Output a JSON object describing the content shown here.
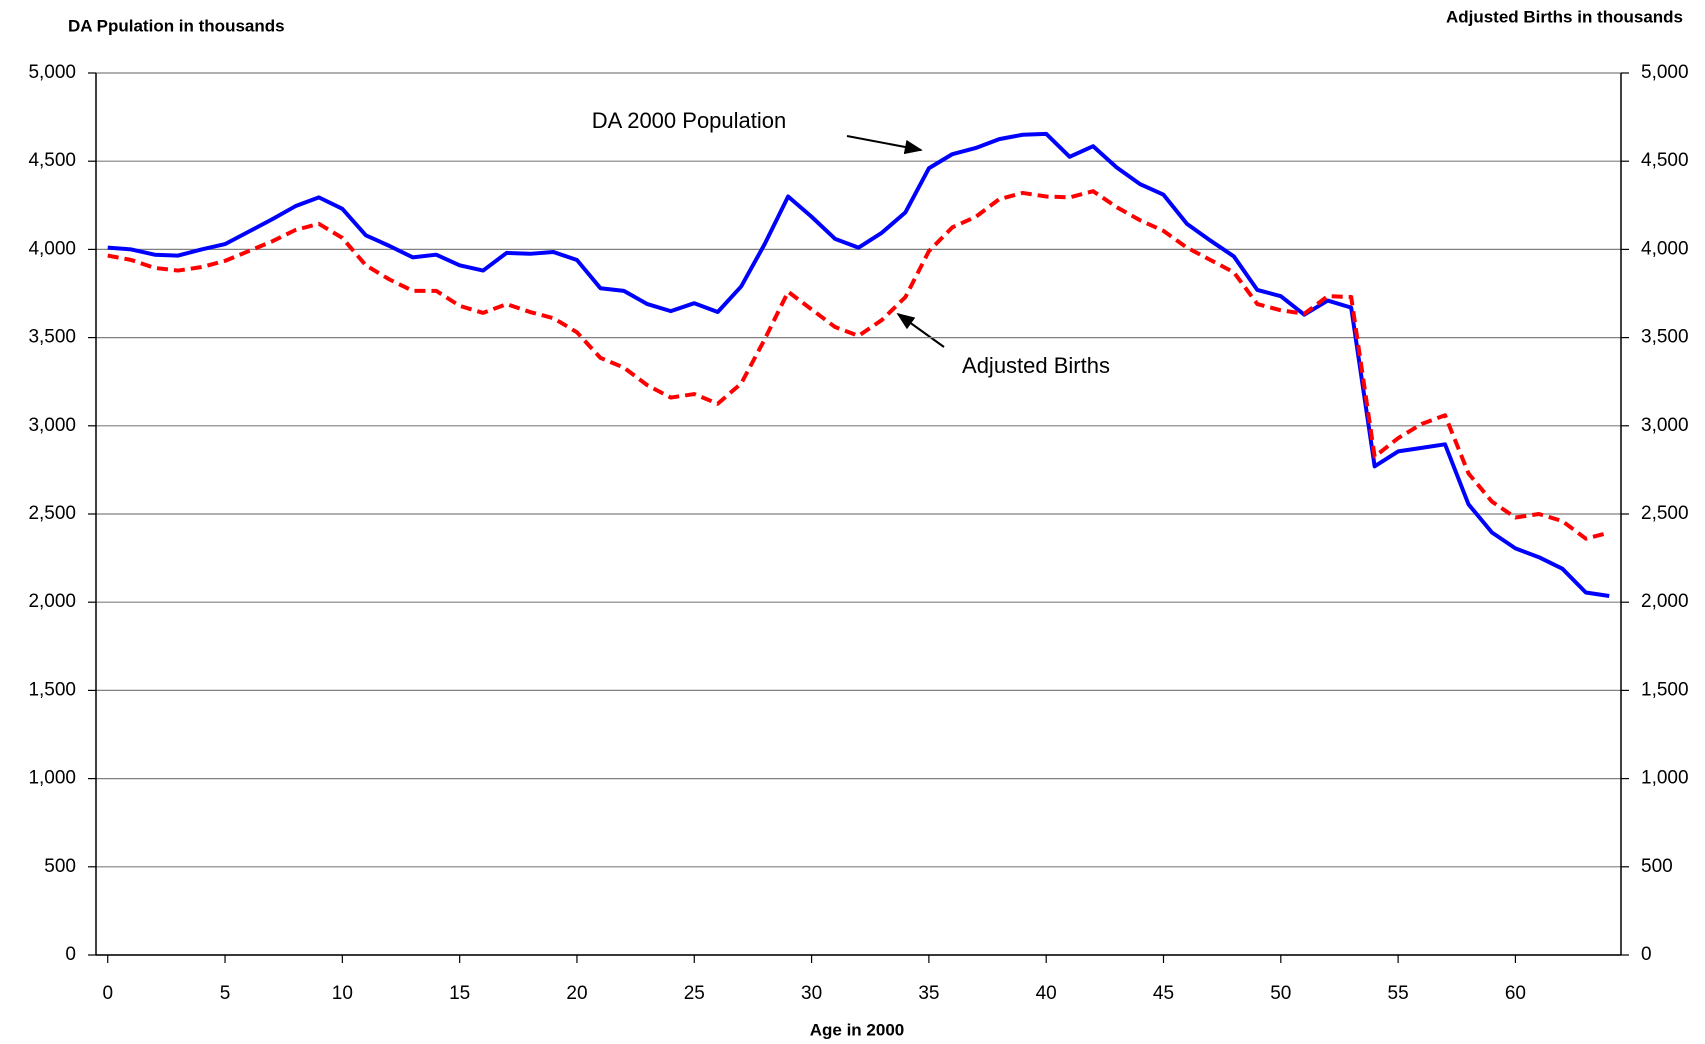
{
  "chart_data": {
    "type": "line",
    "y_label": "DA Ppulation in thousands",
    "y2_label": "Adjusted Births in thousands",
    "x_label": "Age in 2000",
    "annotations": [
      "DA 2000 Population",
      "Adjusted Births"
    ],
    "x": [
      0,
      1,
      2,
      3,
      4,
      5,
      6,
      7,
      8,
      9,
      10,
      11,
      12,
      13,
      14,
      15,
      16,
      17,
      18,
      19,
      20,
      21,
      22,
      23,
      24,
      25,
      26,
      27,
      28,
      29,
      30,
      31,
      32,
      33,
      34,
      35,
      36,
      37,
      38,
      39,
      40,
      41,
      42,
      43,
      44,
      45,
      46,
      47,
      48,
      49,
      50,
      51,
      52,
      53,
      54,
      55,
      56,
      57,
      58,
      59,
      60,
      61,
      62,
      63,
      64
    ],
    "xlim": [
      -0.5,
      64.5
    ],
    "xticks": [
      0,
      5,
      10,
      15,
      20,
      25,
      30,
      35,
      40,
      45,
      50,
      55,
      60
    ],
    "ylim": [
      0,
      5000
    ],
    "yticks": [
      0,
      500,
      {
        "value": 1000,
        "label": "1,000"
      },
      {
        "value": 1500,
        "label": "1,500"
      },
      {
        "value": 2000,
        "label": "2,000"
      },
      {
        "value": 2500,
        "label": "2,500"
      },
      {
        "value": 3000,
        "label": "3,000"
      },
      {
        "value": 3500,
        "label": "3,500"
      },
      {
        "value": 4000,
        "label": "4,000"
      },
      {
        "value": 4500,
        "label": "4,500"
      },
      {
        "value": 5000,
        "label": "5,000"
      }
    ],
    "y2lim": [
      0,
      5000
    ],
    "y2ticks": [
      0,
      500,
      {
        "value": 1000,
        "label": "1,000"
      },
      {
        "value": 1500,
        "label": "1,500"
      },
      {
        "value": 2000,
        "label": "2,000"
      },
      {
        "value": 2500,
        "label": "2,500"
      },
      {
        "value": 3000,
        "label": "3,000"
      },
      {
        "value": 3500,
        "label": "3,500"
      },
      {
        "value": 4000,
        "label": "4,000"
      },
      {
        "value": 4500,
        "label": "4,500"
      },
      {
        "value": 5000,
        "label": "5,000"
      }
    ],
    "grid": true,
    "series": [
      {
        "name": "DA 2000 Population",
        "color": "#0000ff",
        "dash": false,
        "axis": "y",
        "values": [
          4010,
          4000,
          3970,
          3965,
          4000,
          4030,
          4100,
          4170,
          4245,
          4295,
          4230,
          4080,
          4020,
          3955,
          3970,
          3910,
          3880,
          3980,
          3975,
          3985,
          3940,
          3780,
          3765,
          3690,
          3650,
          3695,
          3645,
          3790,
          4030,
          4300,
          4185,
          4060,
          4010,
          4095,
          4210,
          4460,
          4540,
          4575,
          4625,
          4650,
          4655,
          4525,
          4585,
          4465,
          4370,
          4310,
          4145,
          4050,
          3960,
          3770,
          3735,
          3630,
          3710,
          3670,
          2770,
          2855,
          2875,
          2895,
          2555,
          2395,
          2305,
          2255,
          2190,
          2055,
          2035
        ]
      },
      {
        "name": "Adjusted Births",
        "color": "#ff0000",
        "dash": true,
        "axis": "y2",
        "values": [
          3965,
          3940,
          3895,
          3880,
          3900,
          3935,
          3990,
          4045,
          4110,
          4145,
          4065,
          3910,
          3830,
          3765,
          3765,
          3680,
          3640,
          3690,
          3645,
          3610,
          3530,
          3385,
          3330,
          3230,
          3160,
          3180,
          3125,
          3240,
          3490,
          3760,
          3660,
          3560,
          3510,
          3600,
          3730,
          3990,
          4125,
          4185,
          4285,
          4320,
          4300,
          4295,
          4330,
          4240,
          4165,
          4105,
          4010,
          3940,
          3870,
          3690,
          3655,
          3635,
          3735,
          3730,
          2825,
          2930,
          3010,
          3060,
          2730,
          2570,
          2480,
          2500,
          2460,
          2360,
          2395
        ]
      }
    ]
  }
}
